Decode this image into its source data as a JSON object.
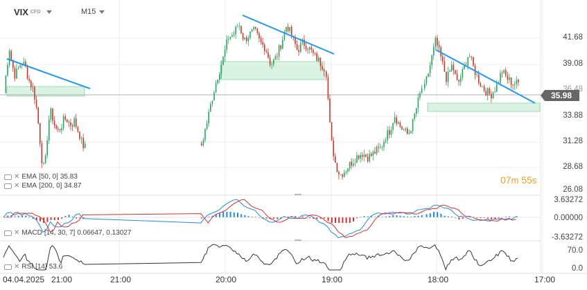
{
  "header": {
    "symbol": "VIX",
    "instrument_type": "CFD",
    "timeframe": "M15"
  },
  "price_axis": {
    "labels": [
      "41.68",
      "39.08",
      "36.48",
      "33.88",
      "31.28",
      "28.68",
      "26.08"
    ],
    "current_price": "35.98"
  },
  "countdown": {
    "minutes": "07",
    "minutes_unit": "m",
    "seconds": "55",
    "seconds_unit": "s"
  },
  "indicators": {
    "ema50": {
      "label": "EMA",
      "params": "[50, 0]",
      "value": "35.83"
    },
    "ema200": {
      "label": "EMA",
      "params": "[200, 0]",
      "value": "34.87"
    },
    "macd": {
      "label": "MACD",
      "params": "[14, 30, 7]",
      "value1": "0.06647,",
      "value2": "0.13027"
    },
    "rsi": {
      "label": "RSI",
      "params": "[14]",
      "value": "53.6"
    }
  },
  "macd_axis": {
    "labels": [
      "3.63272",
      "0.00000",
      "-3.63272"
    ]
  },
  "rsi_axis": {
    "labels": [
      "70.0",
      "0.0"
    ]
  },
  "time_axis": {
    "labels": [
      "04.04.2025",
      "21:00",
      "21:00",
      "20:00",
      "19:00",
      "18:00",
      "17:00"
    ]
  },
  "colors": {
    "bull": "#27a35f",
    "bear": "#c0392b",
    "trendline": "#2196f3",
    "zone_fill": "#d9f2e3",
    "zone_border": "#8fd3aa",
    "ema_line": "#888888",
    "macd_pos": "#1e88e5",
    "macd_neg": "#d32f2f",
    "countdown": "#f0a020"
  },
  "chart_data": {
    "type": "candlestick",
    "y_range": [
      25.5,
      43.0
    ],
    "current_price": 35.98,
    "note_series": [
      {
        "segment": 1,
        "path": [
          35.0,
          37.5,
          39.4,
          37.8,
          36.8,
          37.2,
          37.8,
          38.0,
          37.5,
          36.4,
          35.8,
          35.2,
          33.5,
          31.2,
          28.4,
          27.2,
          30.6,
          33.3,
          32.5,
          31.5,
          31.2,
          31.6,
          32.2,
          32.5,
          32.0,
          31.8,
          32.2,
          31.5,
          30.8,
          29.8,
          29.6
        ]
      },
      {
        "segment": 2,
        "path": [
          29.8,
          32.0,
          34.5,
          36.6,
          38.3,
          40.5,
          40.8,
          41.9,
          40.2,
          40.8,
          41.2,
          40.0,
          39.5,
          37.8,
          38.5,
          40.0,
          41.8,
          40.6,
          39.2,
          40.0,
          39.6,
          38.8,
          38.2,
          37.5
        ]
      },
      {
        "segment": 3,
        "path": [
          37.0,
          30.4,
          28.0,
          26.8,
          27.2,
          27.8,
          28.3,
          28.8,
          29.0,
          28.6,
          28.8,
          29.2,
          29.5,
          30.6,
          31.3,
          32.8,
          31.8,
          31.3,
          30.8,
          32.0,
          33.8,
          35.5
        ]
      },
      {
        "segment": 4,
        "path": [
          35.5,
          37.8,
          40.2,
          38.4,
          36.3,
          37.8,
          35.8,
          37.2,
          38.9,
          37.3,
          36.0,
          35.2,
          34.8,
          35.6,
          37.2,
          36.4,
          35.9,
          35.98
        ]
      }
    ]
  }
}
